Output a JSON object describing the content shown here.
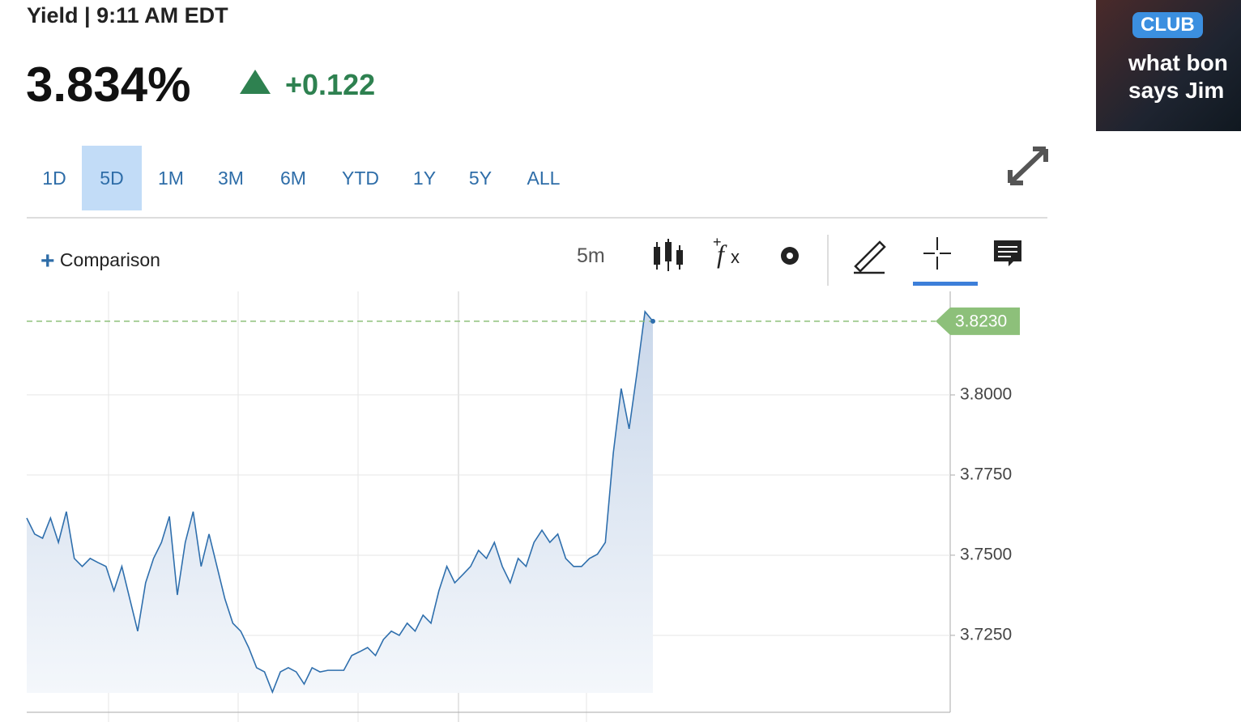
{
  "header": {
    "title": "Yield | 9:11 AM EDT",
    "price": "3.834%",
    "change": "+0.122"
  },
  "tabs": [
    "1D",
    "5D",
    "1M",
    "3M",
    "6M",
    "YTD",
    "1Y",
    "5Y",
    "ALL"
  ],
  "active_tab": "5D",
  "toolbar": {
    "comparison": "Comparison",
    "interval": "5m"
  },
  "ad": {
    "badge": "CLUB",
    "line1": "what bon",
    "line2": "says Jim"
  },
  "chart_data": {
    "type": "line",
    "color": "#2f6fad",
    "values": [
      3.7616,
      3.7566,
      3.7553,
      3.7616,
      3.754,
      3.7636,
      3.749,
      3.7465,
      3.749,
      3.7477,
      3.7465,
      3.7389,
      3.7465,
      3.7364,
      3.7263,
      3.7414,
      3.749,
      3.754,
      3.7621,
      3.7376,
      3.754,
      3.7636,
      3.7465,
      3.7566,
      3.7465,
      3.7364,
      3.7288,
      3.7263,
      3.7212,
      3.7149,
      3.7136,
      3.7073,
      3.7136,
      3.7149,
      3.7136,
      3.7098,
      3.7149,
      3.7136,
      3.7141,
      3.7141,
      3.7141,
      3.7187,
      3.7199,
      3.7212,
      3.7187,
      3.7237,
      3.7263,
      3.725,
      3.7288,
      3.7263,
      3.7313,
      3.7288,
      3.7389,
      3.7465,
      3.7414,
      3.7439,
      3.7465,
      3.7515,
      3.749,
      3.754,
      3.7465,
      3.7414,
      3.749,
      3.7465,
      3.754,
      3.7578,
      3.754,
      3.7566,
      3.749,
      3.7465,
      3.7465,
      3.749,
      3.7503,
      3.754,
      3.7818,
      3.802,
      3.7894,
      3.8071,
      3.826,
      3.823
    ],
    "ylim": [
      3.701,
      3.8323
    ],
    "yticks": [
      {
        "value": 3.725,
        "label": "3.7250"
      },
      {
        "value": 3.75,
        "label": "3.7500"
      },
      {
        "value": 3.775,
        "label": "3.7750"
      },
      {
        "value": 3.8,
        "label": "3.8000"
      }
    ],
    "reference_line": {
      "value": 3.823,
      "label": "3.8230",
      "color": "#8dc07a"
    },
    "grid": true
  }
}
